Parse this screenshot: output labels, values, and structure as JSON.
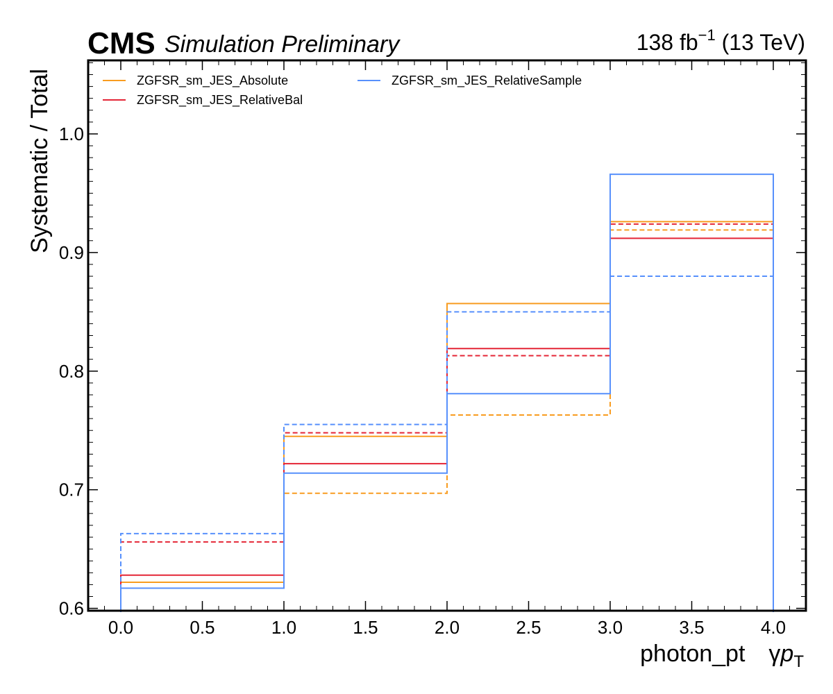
{
  "header": {
    "experiment": "CMS",
    "status": "Simulation Preliminary",
    "lumi_value": "138 fb",
    "lumi_exp": "−1",
    "lumi_energy": " (13 TeV)"
  },
  "chart_data": {
    "type": "step",
    "xlabel_main": "photon_pt",
    "xlabel_symbol": "γ",
    "xlabel_p": "p",
    "xlabel_sub": "T",
    "ylabel": "Systematic / Total",
    "xlim": [
      -0.2,
      4.2
    ],
    "ylim": [
      0.598,
      1.062
    ],
    "x_ticks": [
      0.0,
      0.5,
      1.0,
      1.5,
      2.0,
      2.5,
      3.0,
      3.5,
      4.0
    ],
    "x_tick_labels": [
      "0.0",
      "0.5",
      "1.0",
      "1.5",
      "2.0",
      "2.5",
      "3.0",
      "3.5",
      "4.0"
    ],
    "y_ticks": [
      0.6,
      0.7,
      0.8,
      0.9,
      1.0
    ],
    "y_tick_labels": [
      "0.6",
      "0.7",
      "0.8",
      "0.9",
      "1.0"
    ],
    "bin_edges": [
      0,
      1,
      2,
      3,
      4
    ],
    "legend_position": "top-left",
    "series": [
      {
        "name": "ZGFSR_sm_JES_Absolute",
        "color": "#f89c20",
        "style": "solid",
        "values": [
          0.622,
          0.745,
          0.857,
          0.926
        ]
      },
      {
        "name": "ZGFSR_sm_JES_Absolute",
        "color": "#f89c20",
        "style": "dashed",
        "values": [
          0.622,
          0.697,
          0.763,
          0.919
        ]
      },
      {
        "name": "ZGFSR_sm_JES_RelativeBal",
        "color": "#e42536",
        "style": "solid",
        "values": [
          0.628,
          0.722,
          0.819,
          0.912
        ]
      },
      {
        "name": "ZGFSR_sm_JES_RelativeBal",
        "color": "#e42536",
        "style": "dashed",
        "values": [
          0.656,
          0.748,
          0.813,
          0.924
        ]
      },
      {
        "name": "ZGFSR_sm_JES_RelativeSample",
        "color": "#5790fc",
        "style": "solid",
        "values": [
          0.617,
          0.714,
          0.781,
          0.966
        ]
      },
      {
        "name": "ZGFSR_sm_JES_RelativeSample",
        "color": "#5790fc",
        "style": "dashed",
        "values": [
          0.663,
          0.755,
          0.85,
          0.88
        ]
      }
    ],
    "legend": [
      {
        "label": "ZGFSR_sm_JES_Absolute",
        "color": "#f89c20"
      },
      {
        "label": "ZGFSR_sm_JES_RelativeBal",
        "color": "#e42536"
      },
      {
        "label": "ZGFSR_sm_JES_RelativeSample",
        "color": "#5790fc"
      }
    ]
  }
}
